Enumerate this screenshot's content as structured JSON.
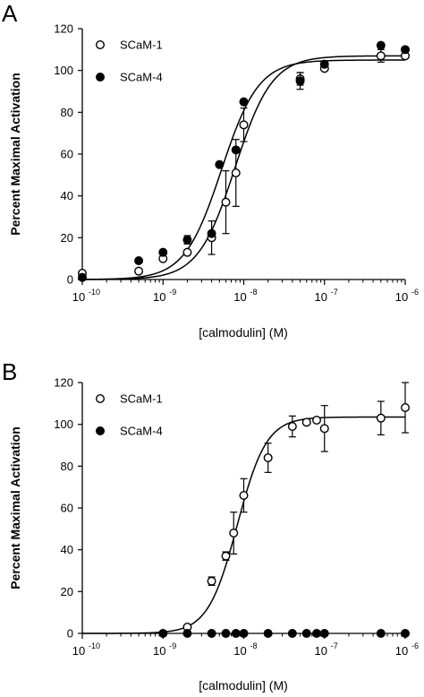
{
  "figure": {
    "panels": [
      {
        "letter": "A",
        "ylabel": "Percent Maximal Activation",
        "xlabel": "[calmodulin] (M)"
      },
      {
        "letter": "B",
        "ylabel": "Percent Maximal Activation",
        "xlabel": "[calmodulin] (M)"
      }
    ]
  },
  "chart_data": [
    {
      "type": "scatter",
      "panel": "A",
      "xlabel": "[calmodulin] (M)",
      "ylabel": "Percent Maximal Activation",
      "xscale": "log",
      "xlim": [
        1e-10,
        1e-06
      ],
      "ylim": [
        0,
        120
      ],
      "xticks": [
        1e-10,
        1e-09,
        1e-08,
        1e-07,
        1e-06
      ],
      "xtick_labels": [
        {
          "base": "10",
          "exp": "-10"
        },
        {
          "base": "10",
          "exp": "-9"
        },
        {
          "base": "10",
          "exp": "-8"
        },
        {
          "base": "10",
          "exp": "-7"
        },
        {
          "base": "10",
          "exp": "-6"
        }
      ],
      "yticks": [
        0,
        20,
        40,
        60,
        80,
        100,
        120
      ],
      "legend": "top-left",
      "grid": false,
      "series": [
        {
          "name": "SCaM-1",
          "marker": "open-circle",
          "points": [
            {
              "x": 1e-10,
              "y": 3,
              "err": 0
            },
            {
              "x": 5e-10,
              "y": 4,
              "err": 0
            },
            {
              "x": 1e-09,
              "y": 10,
              "err": 0
            },
            {
              "x": 2e-09,
              "y": 13,
              "err": 0
            },
            {
              "x": 4e-09,
              "y": 20,
              "err": 8
            },
            {
              "x": 6e-09,
              "y": 37,
              "err": 15
            },
            {
              "x": 8e-09,
              "y": 51,
              "err": 16
            },
            {
              "x": 1e-08,
              "y": 74,
              "err": 8
            },
            {
              "x": 5e-08,
              "y": 96,
              "err": 3
            },
            {
              "x": 1e-07,
              "y": 101,
              "err": 0
            },
            {
              "x": 5e-07,
              "y": 107,
              "err": 3
            },
            {
              "x": 1e-06,
              "y": 107,
              "err": 0
            }
          ],
          "fit": {
            "bottom": 0,
            "top": 107,
            "ec50": 7.8e-09,
            "hill": 1.9
          }
        },
        {
          "name": "SCaM-4",
          "marker": "filled-circle",
          "points": [
            {
              "x": 1e-10,
              "y": 1,
              "err": 0
            },
            {
              "x": 5e-10,
              "y": 9,
              "err": 0
            },
            {
              "x": 1e-09,
              "y": 13,
              "err": 0
            },
            {
              "x": 2e-09,
              "y": 19,
              "err": 2
            },
            {
              "x": 4e-09,
              "y": 22,
              "err": 0
            },
            {
              "x": 5e-09,
              "y": 55,
              "err": 0
            },
            {
              "x": 8e-09,
              "y": 62,
              "err": 0
            },
            {
              "x": 1e-08,
              "y": 85,
              "err": 0
            },
            {
              "x": 5e-08,
              "y": 95,
              "err": 4
            },
            {
              "x": 1e-07,
              "y": 103,
              "err": 0
            },
            {
              "x": 5e-07,
              "y": 112,
              "err": 0
            },
            {
              "x": 1e-06,
              "y": 110,
              "err": 0
            }
          ],
          "fit": {
            "bottom": 0,
            "top": 105,
            "ec50": 5.3e-09,
            "hill": 1.9
          }
        }
      ]
    },
    {
      "type": "scatter",
      "panel": "B",
      "xlabel": "[calmodulin] (M)",
      "ylabel": "Percent Maximal Activation",
      "xscale": "log",
      "xlim": [
        1e-10,
        1e-06
      ],
      "ylim": [
        0,
        120
      ],
      "xticks": [
        1e-10,
        1e-09,
        1e-08,
        1e-07,
        1e-06
      ],
      "xtick_labels": [
        {
          "base": "10",
          "exp": "-10"
        },
        {
          "base": "10",
          "exp": "-9"
        },
        {
          "base": "10",
          "exp": "-8"
        },
        {
          "base": "10",
          "exp": "-7"
        },
        {
          "base": "10",
          "exp": "-6"
        }
      ],
      "yticks": [
        0,
        20,
        40,
        60,
        80,
        100,
        120
      ],
      "legend": "top-left",
      "grid": false,
      "series": [
        {
          "name": "SCaM-1",
          "marker": "open-circle",
          "points": [
            {
              "x": 2e-09,
              "y": 3,
              "err": 0
            },
            {
              "x": 4e-09,
              "y": 25,
              "err": 2
            },
            {
              "x": 6e-09,
              "y": 37,
              "err": 2
            },
            {
              "x": 7.5e-09,
              "y": 48,
              "err": 10
            },
            {
              "x": 1e-08,
              "y": 66,
              "err": 8
            },
            {
              "x": 2e-08,
              "y": 84,
              "err": 7
            },
            {
              "x": 4e-08,
              "y": 99,
              "err": 5
            },
            {
              "x": 6e-08,
              "y": 101,
              "err": 0
            },
            {
              "x": 8e-08,
              "y": 102,
              "err": 0
            },
            {
              "x": 1e-07,
              "y": 98,
              "err": 11
            },
            {
              "x": 5e-07,
              "y": 103,
              "err": 8
            },
            {
              "x": 1e-06,
              "y": 108,
              "err": 12
            }
          ],
          "fit": {
            "bottom": 0,
            "top": 103.5,
            "ec50": 8.3e-09,
            "hill": 2.4
          }
        },
        {
          "name": "SCaM-4",
          "marker": "filled-circle",
          "points": [
            {
              "x": 1e-09,
              "y": 0,
              "err": 0
            },
            {
              "x": 2e-09,
              "y": 0,
              "err": 0
            },
            {
              "x": 4e-09,
              "y": 0,
              "err": 0
            },
            {
              "x": 6e-09,
              "y": 0,
              "err": 0
            },
            {
              "x": 8e-09,
              "y": 0,
              "err": 0
            },
            {
              "x": 1e-08,
              "y": 0,
              "err": 0
            },
            {
              "x": 2e-08,
              "y": 0,
              "err": 0
            },
            {
              "x": 4e-08,
              "y": 0,
              "err": 0
            },
            {
              "x": 6e-08,
              "y": 0,
              "err": 0
            },
            {
              "x": 8e-08,
              "y": 0,
              "err": 0
            },
            {
              "x": 1e-07,
              "y": 0,
              "err": 0
            },
            {
              "x": 5e-07,
              "y": 0,
              "err": 0
            },
            {
              "x": 1e-06,
              "y": 0,
              "err": 0
            }
          ]
        }
      ]
    }
  ]
}
